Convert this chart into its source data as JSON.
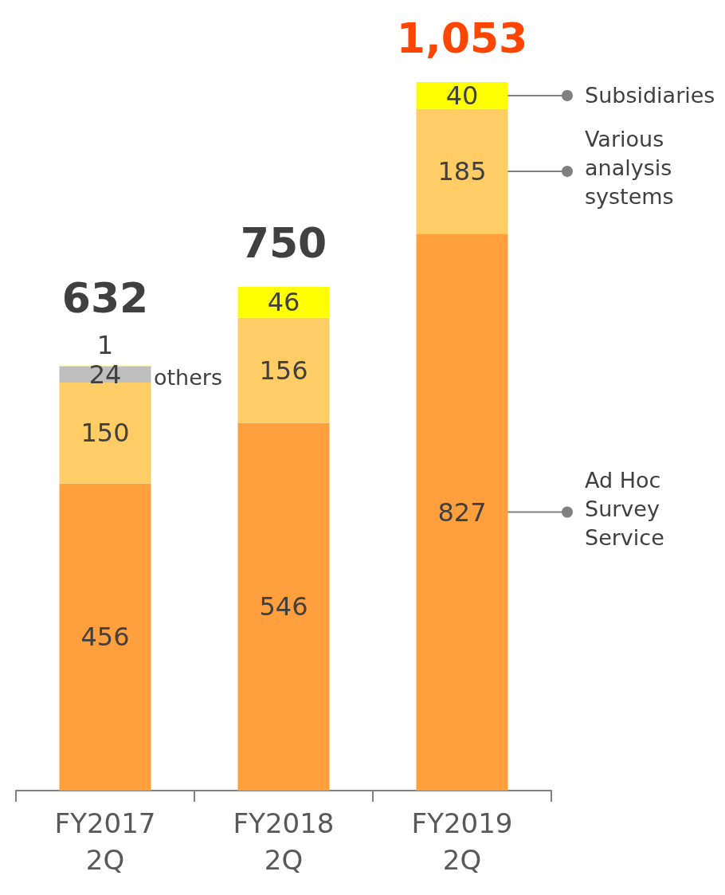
{
  "chart_data": {
    "type": "bar",
    "stacked": true,
    "data_labels": true,
    "categories": [
      "FY2017\n2Q",
      "FY2018\n2Q",
      "FY2019\n2Q"
    ],
    "series": [
      {
        "name": "Ad Hoc\nSurvey\nService",
        "color": "#ff9f3d",
        "values": [
          456,
          546,
          827
        ]
      },
      {
        "name": "Various\nanalysis\nsystems",
        "color": "#ffcc66",
        "values": [
          150,
          156,
          185
        ]
      },
      {
        "name": "others",
        "color": "#bfbfbf",
        "values": [
          24,
          null,
          null
        ]
      },
      {
        "name": "Subsidiaries",
        "color": "#ffff00",
        "values": [
          1,
          46,
          40
        ]
      }
    ],
    "totals": [
      "632",
      "750",
      "1,053"
    ],
    "legend": false
  }
}
